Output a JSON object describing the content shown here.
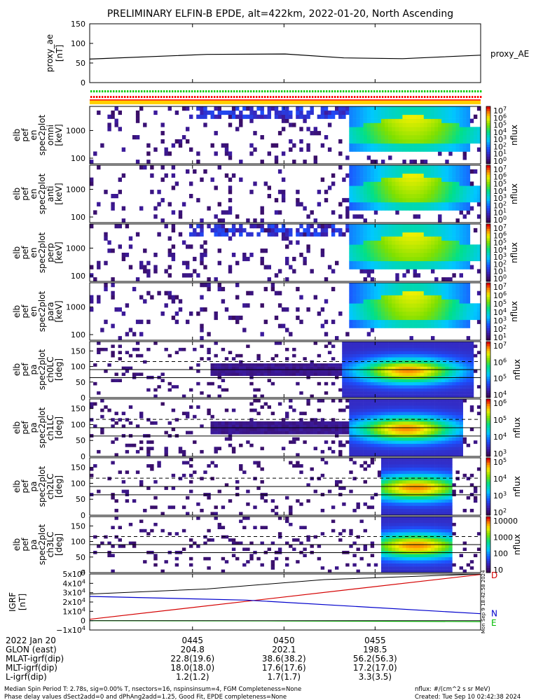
{
  "title": "PRELIMINARY ELFIN-B EPDE, alt=422km, 2022-01-20, North Ascending",
  "colors": {
    "trace": "#000000",
    "grf_d": "#d40000",
    "grf_n": "#0000cc",
    "grf_e": "#00bb00",
    "flag_green": "#00cc00",
    "flag_red": "#ff0000",
    "flag_yellow": "#ffd000"
  },
  "chart_data": [
    {
      "id": "proxy_ae",
      "type": "line",
      "ylabel": "proxy_ae [nT]",
      "ylim": [
        0,
        150
      ],
      "yticks": [
        "150",
        "100",
        "50",
        "0"
      ],
      "legend": "proxy_AE",
      "series": [
        {
          "name": "proxy_AE",
          "x": [
            0,
            0.3,
            0.5,
            0.65,
            0.8,
            1.0
          ],
          "y": [
            60,
            72,
            73,
            63,
            61,
            70
          ]
        }
      ]
    },
    {
      "id": "spec_omni",
      "type": "heatmap",
      "ylabel_lines": [
        "elb",
        "pef",
        "en",
        "spec2plot",
        "omni",
        "[keV]"
      ],
      "yticks": [
        "1000",
        "100"
      ],
      "colorbar_label": "nflux",
      "colorbar_ticks": [
        "10^7",
        "10^6",
        "10^5",
        "10^4",
        "10^3",
        "10^2",
        "10^1",
        "10^0"
      ]
    },
    {
      "id": "spec_anti",
      "type": "heatmap",
      "ylabel_lines": [
        "elb",
        "pef",
        "en",
        "spec2plot",
        "anti",
        "[keV]"
      ],
      "yticks": [
        "1000",
        "100"
      ],
      "colorbar_label": "nflux",
      "colorbar_ticks": [
        "10^7",
        "10^6",
        "10^5",
        "10^4",
        "10^3",
        "10^2",
        "10^1",
        "10^0"
      ]
    },
    {
      "id": "spec_perp",
      "type": "heatmap",
      "ylabel_lines": [
        "elb",
        "pef",
        "en",
        "spec2plot",
        "perp",
        "[keV]"
      ],
      "yticks": [
        "1000",
        "100"
      ],
      "colorbar_label": "nflux",
      "colorbar_ticks": [
        "10^7",
        "10^6",
        "10^5",
        "10^4",
        "10^3",
        "10^2",
        "10^1",
        "10^0"
      ]
    },
    {
      "id": "spec_para",
      "type": "heatmap",
      "ylabel_lines": [
        "elb",
        "pef",
        "en",
        "spec2plot",
        "para",
        "[keV]"
      ],
      "yticks": [
        "1000",
        "100"
      ],
      "colorbar_label": "nflux",
      "colorbar_ticks": [
        "10^7",
        "10^6",
        "10^5",
        "10^4",
        "10^3",
        "10^2",
        "10^1"
      ]
    },
    {
      "id": "pa_ch0",
      "type": "heatmap",
      "ylabel_lines": [
        "elb",
        "pef",
        "pa",
        "spec2plot",
        "ch0LC",
        "[deg]"
      ],
      "ylim": [
        0,
        180
      ],
      "yticks": [
        "150",
        "100",
        "50",
        "0"
      ],
      "colorbar_label": "nflux",
      "colorbar_ticks": [
        "10^7",
        "10^6",
        "10^5",
        "10^4"
      ]
    },
    {
      "id": "pa_ch1",
      "type": "heatmap",
      "ylabel_lines": [
        "elb",
        "pef",
        "pa",
        "spec2plot",
        "ch1LC",
        "[deg]"
      ],
      "ylim": [
        0,
        180
      ],
      "yticks": [
        "150",
        "100",
        "50",
        "0"
      ],
      "colorbar_label": "nflux",
      "colorbar_ticks": [
        "10^6",
        "10^5",
        "10^4",
        "10^3"
      ]
    },
    {
      "id": "pa_ch2",
      "type": "heatmap",
      "ylabel_lines": [
        "elb",
        "pef",
        "pa",
        "spec2plot",
        "ch2LC",
        "[deg]"
      ],
      "ylim": [
        0,
        180
      ],
      "yticks": [
        "150",
        "100",
        "50",
        "0"
      ],
      "colorbar_label": "nflux",
      "colorbar_ticks": [
        "10^5",
        "10^4",
        "10^3",
        "10^2"
      ]
    },
    {
      "id": "pa_ch3",
      "type": "heatmap",
      "ylabel_lines": [
        "elb",
        "pef",
        "pa",
        "spec2plot",
        "ch3LC",
        "[deg]"
      ],
      "ylim": [
        0,
        180
      ],
      "yticks": [
        "150",
        "100",
        "50",
        "0"
      ],
      "colorbar_label": "nflux",
      "colorbar_ticks": [
        "10000",
        "1000",
        "100",
        "10"
      ]
    },
    {
      "id": "igrf",
      "type": "line",
      "ylabel": "IGRF [nT]",
      "ylim": [
        -10000,
        50000
      ],
      "yticks": [
        "5×10^4",
        "4×10^4",
        "3×10^4",
        "2×10^4",
        "1×10^4",
        "0",
        "−1×10^4"
      ],
      "series": [
        {
          "name": "D",
          "x": [
            0,
            1
          ],
          "y": [
            1500,
            49500
          ]
        },
        {
          "name": "N",
          "x": [
            0,
            0.4,
            1
          ],
          "y": [
            26000,
            22000,
            7500
          ]
        },
        {
          "name": "E",
          "x": [
            0,
            0.5,
            1
          ],
          "y": [
            0,
            -300,
            -1000
          ]
        }
      ]
    }
  ],
  "xaxis": {
    "ticks": [
      "0445",
      "0450",
      "0455"
    ],
    "rows": [
      {
        "label": "2022 Jan 20",
        "values": [
          "0445",
          "0450",
          "0455"
        ]
      },
      {
        "label": "GLON (east)",
        "values": [
          "204.8",
          "202.1",
          "198.5"
        ]
      },
      {
        "label": "MLAT-igrf(dip)",
        "values": [
          "22.8(19.6)",
          "38.6(38.2)",
          "56.2(56.3)"
        ]
      },
      {
        "label": "MLT-igrf(dip)",
        "values": [
          "18.0(18.0)",
          "17.6(17.6)",
          "17.2(17.0)"
        ]
      },
      {
        "label": "L-igrf(dip)",
        "values": [
          "1.2(1.2)",
          "1.7(1.7)",
          "3.3(3.5)"
        ]
      }
    ]
  },
  "vertical_stamp": "Mon Sep 9 18:42:58 2024",
  "footer": {
    "line1_left": "Median Spin Period T: 2.78s, sig=0.00% T, nsectors=16, nspinsinsum=4, FGM Completeness=None",
    "line2_left": "Phase delay values dSect2add=0 and dPhAng2add=1.25, Good Fit, EPDE completeness=None",
    "line1_right": "nflux: #/(cm^2 s sr MeV)",
    "line2_right": "Created: Tue Sep 10 02:42:38 2024"
  }
}
